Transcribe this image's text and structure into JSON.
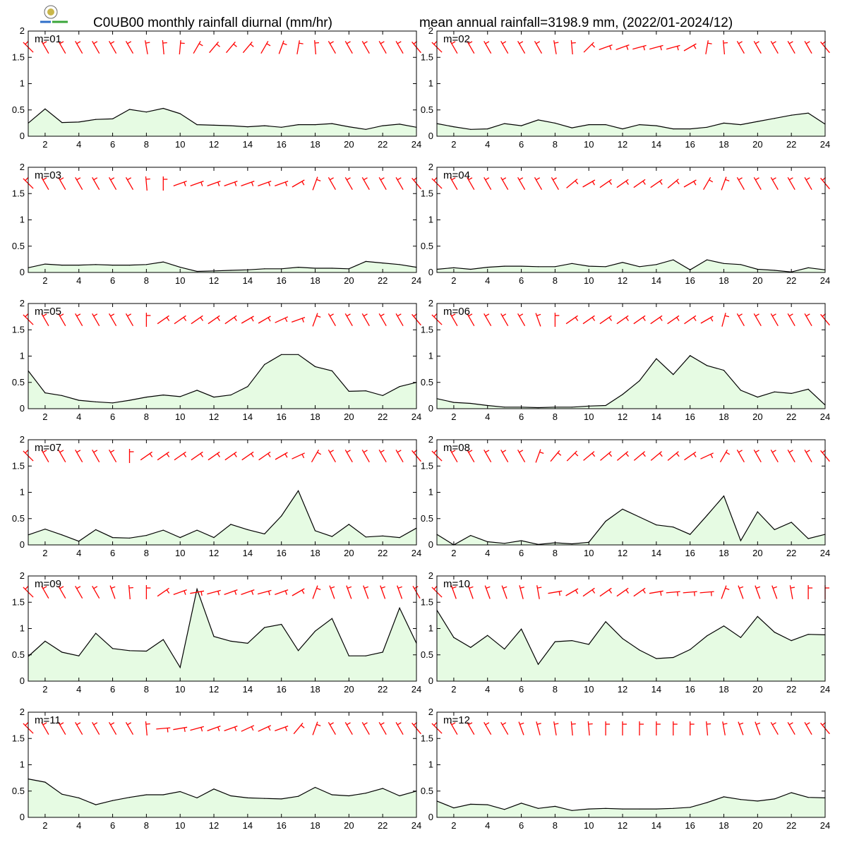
{
  "title_left": "C0UB00 monthly rainfall diurnal (mm/hr)",
  "title_right": "mean annual rainfall=3198.9 mm, (2022/01-2024/12)",
  "colors": {
    "area_fill": "#e6fbe3",
    "line": "#000000",
    "barb": "#ff0000"
  },
  "chart_data": {
    "type": "area",
    "x": [
      1,
      2,
      3,
      4,
      5,
      6,
      7,
      8,
      9,
      10,
      11,
      12,
      13,
      14,
      15,
      16,
      17,
      18,
      19,
      20,
      21,
      22,
      23,
      24
    ],
    "x_ticks": [
      "2",
      "4",
      "6",
      "8",
      "10",
      "12",
      "14",
      "16",
      "18",
      "20",
      "22",
      "24"
    ],
    "y_ticks": [
      "0",
      "0.5",
      "1",
      "1.5",
      "2"
    ],
    "ylim": [
      0,
      2
    ],
    "xlim": [
      1,
      24
    ],
    "grid": false,
    "overlay": "red wind barbs per hour",
    "panels": [
      {
        "label": "m=01",
        "values": [
          0.25,
          0.52,
          0.26,
          0.27,
          0.32,
          0.33,
          0.51,
          0.46,
          0.53,
          0.43,
          0.22,
          0.21,
          0.2,
          0.18,
          0.2,
          0.17,
          0.22,
          0.22,
          0.24,
          0.18,
          0.13,
          0.2,
          0.23,
          0.17
        ],
        "wind_dir": [
          315,
          330,
          330,
          330,
          330,
          330,
          330,
          350,
          355,
          5,
          30,
          40,
          40,
          40,
          30,
          20,
          10,
          355,
          330,
          330,
          330,
          330,
          330,
          320
        ]
      },
      {
        "label": "m=02",
        "values": [
          0.24,
          0.18,
          0.13,
          0.14,
          0.24,
          0.2,
          0.31,
          0.25,
          0.16,
          0.22,
          0.22,
          0.14,
          0.22,
          0.2,
          0.14,
          0.14,
          0.17,
          0.25,
          0.22,
          0.28,
          0.34,
          0.4,
          0.44,
          0.23
        ],
        "wind_dir": [
          315,
          330,
          330,
          330,
          330,
          330,
          330,
          350,
          355,
          45,
          70,
          70,
          75,
          75,
          75,
          60,
          10,
          355,
          330,
          330,
          330,
          330,
          330,
          320
        ]
      },
      {
        "label": "m=03",
        "values": [
          0.09,
          0.16,
          0.14,
          0.14,
          0.15,
          0.14,
          0.14,
          0.15,
          0.2,
          0.1,
          0.02,
          0.03,
          0.04,
          0.05,
          0.07,
          0.07,
          0.1,
          0.08,
          0.08,
          0.07,
          0.21,
          0.18,
          0.15,
          0.1
        ],
        "wind_dir": [
          315,
          330,
          330,
          330,
          330,
          330,
          330,
          355,
          0,
          70,
          70,
          70,
          70,
          70,
          70,
          70,
          60,
          20,
          330,
          330,
          330,
          330,
          330,
          320
        ]
      },
      {
        "label": "m=04",
        "values": [
          0.06,
          0.09,
          0.06,
          0.1,
          0.12,
          0.12,
          0.11,
          0.11,
          0.17,
          0.12,
          0.11,
          0.19,
          0.11,
          0.15,
          0.24,
          0.05,
          0.24,
          0.17,
          0.15,
          0.06,
          0.04,
          0.01,
          0.09,
          0.05
        ],
        "wind_dir": [
          315,
          330,
          330,
          330,
          330,
          330,
          330,
          330,
          50,
          60,
          55,
          55,
          55,
          55,
          50,
          60,
          30,
          20,
          330,
          330,
          330,
          330,
          330,
          320
        ]
      },
      {
        "label": "m=05",
        "values": [
          0.72,
          0.3,
          0.25,
          0.16,
          0.13,
          0.11,
          0.16,
          0.22,
          0.26,
          0.23,
          0.35,
          0.22,
          0.26,
          0.42,
          0.84,
          1.03,
          1.03,
          0.8,
          0.72,
          0.33,
          0.34,
          0.25,
          0.42,
          0.5
        ],
        "wind_dir": [
          315,
          330,
          330,
          330,
          330,
          330,
          330,
          0,
          55,
          55,
          55,
          55,
          55,
          60,
          60,
          65,
          70,
          20,
          330,
          330,
          330,
          330,
          330,
          320
        ]
      },
      {
        "label": "m=06",
        "values": [
          0.19,
          0.12,
          0.1,
          0.06,
          0.03,
          0.03,
          0.02,
          0.03,
          0.03,
          0.05,
          0.06,
          0.27,
          0.53,
          0.95,
          0.65,
          1.01,
          0.82,
          0.73,
          0.35,
          0.22,
          0.32,
          0.29,
          0.37,
          0.07
        ],
        "wind_dir": [
          315,
          330,
          330,
          330,
          330,
          330,
          340,
          0,
          55,
          55,
          55,
          55,
          55,
          55,
          55,
          55,
          60,
          15,
          330,
          330,
          330,
          330,
          330,
          320
        ]
      },
      {
        "label": "m=07",
        "values": [
          0.19,
          0.3,
          0.19,
          0.07,
          0.29,
          0.14,
          0.13,
          0.18,
          0.28,
          0.14,
          0.28,
          0.14,
          0.39,
          0.29,
          0.21,
          0.55,
          1.03,
          0.27,
          0.16,
          0.39,
          0.15,
          0.17,
          0.14,
          0.32
        ],
        "wind_dir": [
          315,
          330,
          330,
          330,
          330,
          330,
          0,
          55,
          55,
          55,
          55,
          55,
          55,
          55,
          55,
          60,
          65,
          30,
          330,
          330,
          330,
          330,
          330,
          320
        ]
      },
      {
        "label": "m=08",
        "values": [
          0.2,
          0.0,
          0.18,
          0.06,
          0.03,
          0.08,
          0.01,
          0.04,
          0.02,
          0.05,
          0.45,
          0.68,
          0.53,
          0.38,
          0.34,
          0.2,
          0.56,
          0.93,
          0.08,
          0.63,
          0.29,
          0.43,
          0.12,
          0.2
        ],
        "wind_dir": [
          315,
          330,
          330,
          330,
          330,
          330,
          20,
          40,
          45,
          50,
          50,
          50,
          50,
          50,
          50,
          55,
          65,
          30,
          330,
          330,
          330,
          330,
          330,
          320
        ]
      },
      {
        "label": "m=09",
        "values": [
          0.47,
          0.76,
          0.55,
          0.48,
          0.91,
          0.62,
          0.58,
          0.57,
          0.79,
          0.26,
          1.75,
          0.85,
          0.76,
          0.72,
          1.02,
          1.08,
          0.58,
          0.95,
          1.19,
          0.48,
          0.48,
          0.55,
          1.39,
          0.72
        ],
        "wind_dir": [
          315,
          330,
          330,
          330,
          330,
          340,
          355,
          0,
          55,
          70,
          80,
          75,
          70,
          70,
          75,
          70,
          60,
          20,
          340,
          340,
          340,
          340,
          340,
          330
        ]
      },
      {
        "label": "m=10",
        "values": [
          1.35,
          0.83,
          0.64,
          0.87,
          0.61,
          0.99,
          0.32,
          0.75,
          0.77,
          0.7,
          1.13,
          0.81,
          0.59,
          0.43,
          0.45,
          0.6,
          0.86,
          1.05,
          0.83,
          1.23,
          0.93,
          0.77,
          0.89,
          0.88
        ],
        "wind_dir": [
          315,
          340,
          340,
          340,
          340,
          345,
          350,
          80,
          60,
          55,
          55,
          55,
          55,
          80,
          85,
          85,
          85,
          20,
          340,
          340,
          340,
          350,
          0,
          0
        ]
      },
      {
        "label": "m=11",
        "values": [
          0.73,
          0.67,
          0.44,
          0.37,
          0.24,
          0.32,
          0.38,
          0.43,
          0.43,
          0.49,
          0.37,
          0.54,
          0.41,
          0.37,
          0.36,
          0.35,
          0.4,
          0.57,
          0.43,
          0.41,
          0.46,
          0.55,
          0.41,
          0.5
        ],
        "wind_dir": [
          315,
          330,
          330,
          330,
          330,
          330,
          330,
          355,
          85,
          80,
          75,
          70,
          70,
          65,
          65,
          70,
          40,
          20,
          330,
          330,
          330,
          330,
          330,
          320
        ]
      },
      {
        "label": "m=12",
        "values": [
          0.31,
          0.18,
          0.25,
          0.24,
          0.15,
          0.27,
          0.17,
          0.21,
          0.13,
          0.16,
          0.17,
          0.16,
          0.16,
          0.16,
          0.17,
          0.19,
          0.28,
          0.39,
          0.34,
          0.31,
          0.35,
          0.47,
          0.38,
          0.37
        ],
        "wind_dir": [
          315,
          330,
          330,
          330,
          330,
          340,
          345,
          350,
          355,
          355,
          0,
          0,
          0,
          0,
          0,
          0,
          355,
          350,
          340,
          340,
          330,
          330,
          330,
          320
        ]
      }
    ]
  }
}
